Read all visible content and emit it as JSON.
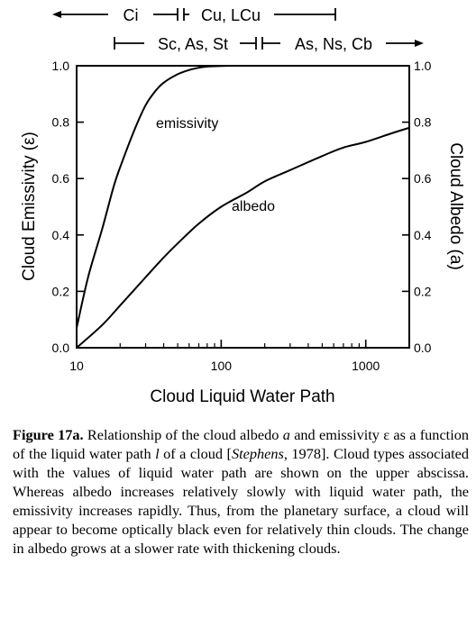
{
  "chart_data": {
    "type": "line",
    "x_scale": "log",
    "xlim": [
      10,
      2000
    ],
    "ylim": [
      0,
      1
    ],
    "xlabel": "Cloud Liquid Water Path",
    "ylabel_left": "Cloud Emissivity (ε)",
    "ylabel_right": "Cloud Albedo (a)",
    "x_ticks": [
      {
        "value": 10,
        "label": "10"
      },
      {
        "value": 100,
        "label": "100"
      },
      {
        "value": 1000,
        "label": "1000"
      }
    ],
    "y_ticks_left": [
      "0.0",
      "0.2",
      "0.4",
      "0.6",
      "0.8",
      "1.0"
    ],
    "y_ticks_right": [
      "0.0",
      "0.2",
      "0.4",
      "0.6",
      "0.8",
      "1.0"
    ],
    "y_tick_values": [
      0,
      0.2,
      0.4,
      0.6,
      0.8,
      1.0
    ],
    "series": [
      {
        "name": "emissivity",
        "x": [
          10,
          12,
          15,
          18,
          20,
          25,
          30,
          35,
          40,
          50,
          60,
          70,
          80,
          100,
          120,
          140,
          200
        ],
        "y": [
          0.07,
          0.25,
          0.42,
          0.57,
          0.64,
          0.77,
          0.86,
          0.91,
          0.94,
          0.97,
          0.985,
          0.993,
          0.997,
          0.999,
          1.0,
          1.0,
          1.0
        ]
      },
      {
        "name": "albedo",
        "x": [
          10,
          15,
          20,
          30,
          40,
          50,
          70,
          100,
          150,
          200,
          300,
          500,
          700,
          1000,
          1500,
          2000
        ],
        "y": [
          0.0,
          0.08,
          0.15,
          0.25,
          0.32,
          0.37,
          0.44,
          0.5,
          0.55,
          0.59,
          0.63,
          0.68,
          0.71,
          0.73,
          0.76,
          0.78
        ]
      }
    ],
    "annotations": [
      "emissivity",
      "albedo"
    ],
    "cloud_types_upper": {
      "row1": [
        {
          "label": "Ci",
          "from": 10,
          "to": 55
        },
        {
          "label": "Cu, LCu",
          "from": 55,
          "to": 300
        }
      ],
      "row2": [
        {
          "label": "Sc, As, St",
          "from": 35,
          "to": 200
        },
        {
          "label": "As, Ns, Cb",
          "from": 200,
          "to": 2000
        }
      ]
    }
  },
  "caption": {
    "label": "Figure 17a.",
    "text_1": " Relationship of the cloud albedo ",
    "sym_a": "a",
    "text_2": " and emissivity ε as a function of the liquid water path ",
    "sym_l": "l",
    "text_3": " of a cloud [",
    "ref_author": "Stephens",
    "text_4": ", 1978]. Cloud types associated with the values of liquid water path are shown on the upper abscissa. Whereas albedo increases relatively slowly with liquid water path, the emissivity increases rapidly. Thus, from the planetary surface, a cloud will appear to become optically black even for relatively thin clouds. The change in albedo grows at a slower rate with thickening clouds."
  }
}
